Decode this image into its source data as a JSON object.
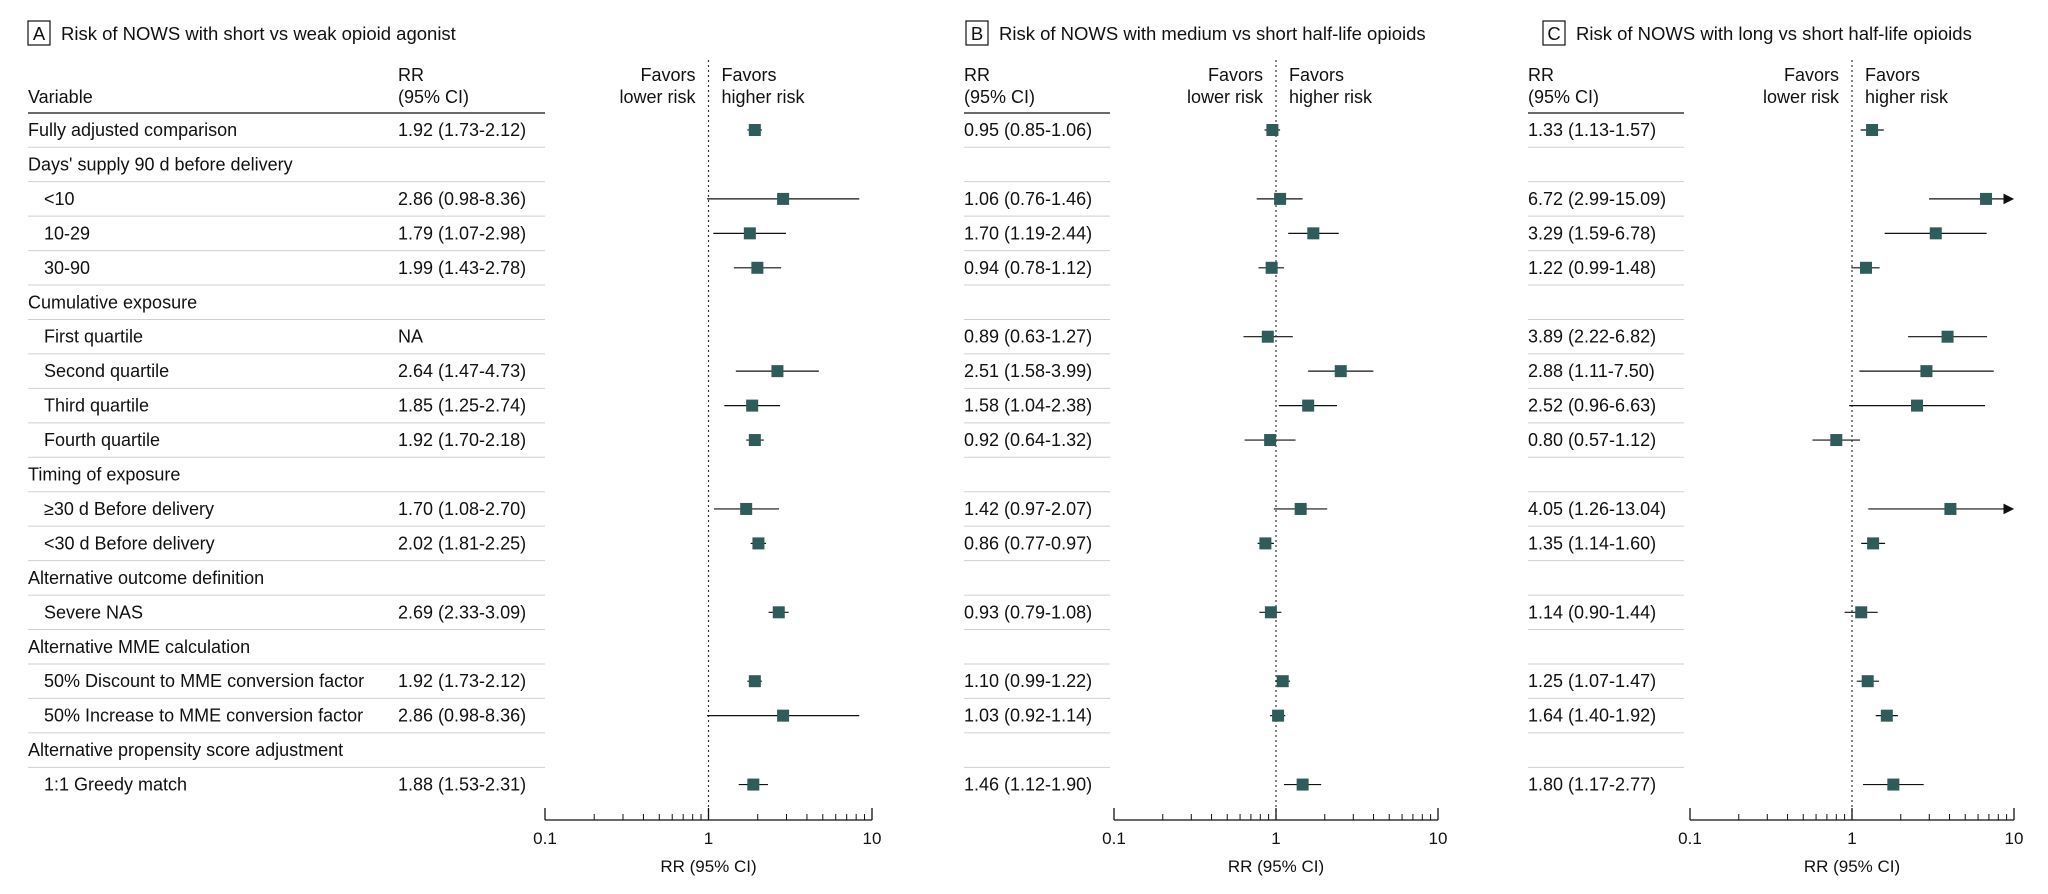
{
  "chart_data": {
    "type": "forest",
    "x_scale": "log",
    "xlim": [
      0.1,
      10
    ],
    "x_ticks": [
      0.1,
      1,
      10
    ],
    "x_tick_labels": [
      "0.1",
      "1",
      "10"
    ],
    "xlabel": "RR (95% CI)",
    "favors_lower": [
      "Favors",
      "lower risk"
    ],
    "favors_higher": [
      "Favors",
      "higher risk"
    ],
    "rr_header": [
      "RR",
      "(95% CI)"
    ],
    "variable_header": "Variable",
    "marker_color": "#2f5b5b",
    "rows": [
      {
        "label": "Fully adjusted comparison",
        "type": "item",
        "indent": false
      },
      {
        "label": "Days' supply 90 d before delivery",
        "type": "group",
        "indent": false
      },
      {
        "label": "<10",
        "type": "item",
        "indent": true
      },
      {
        "label": "10-29",
        "type": "item",
        "indent": true
      },
      {
        "label": "30-90",
        "type": "item",
        "indent": true
      },
      {
        "label": "Cumulative exposure",
        "type": "group",
        "indent": false
      },
      {
        "label": "First quartile",
        "type": "item",
        "indent": true
      },
      {
        "label": "Second quartile",
        "type": "item",
        "indent": true
      },
      {
        "label": "Third quartile",
        "type": "item",
        "indent": true
      },
      {
        "label": "Fourth quartile",
        "type": "item",
        "indent": true
      },
      {
        "label": "Timing of exposure",
        "type": "group",
        "indent": false
      },
      {
        "label": "≥30 d Before delivery",
        "type": "item",
        "indent": true
      },
      {
        "label": "<30 d Before delivery",
        "type": "item",
        "indent": true
      },
      {
        "label": "Alternative outcome definition",
        "type": "group",
        "indent": false
      },
      {
        "label": "Severe NAS",
        "type": "item",
        "indent": true
      },
      {
        "label": "Alternative MME calculation",
        "type": "group",
        "indent": false
      },
      {
        "label": "50% Discount to MME conversion factor",
        "type": "item",
        "indent": true
      },
      {
        "label": "50% Increase to MME conversion factor",
        "type": "item",
        "indent": true
      },
      {
        "label": "Alternative propensity score adjustment",
        "type": "group",
        "indent": false
      },
      {
        "label": "1:1 Greedy match",
        "type": "item",
        "indent": true
      }
    ],
    "panels": [
      {
        "letter": "A",
        "title": "Risk of NOWS with short vs weak opioid agonist",
        "estimates": [
          {
            "text": "1.92 (1.73-2.12)",
            "rr": 1.92,
            "lo": 1.73,
            "hi": 2.12
          },
          null,
          {
            "text": "2.86 (0.98-8.36)",
            "rr": 2.86,
            "lo": 0.98,
            "hi": 8.36
          },
          {
            "text": "1.79 (1.07-2.98)",
            "rr": 1.79,
            "lo": 1.07,
            "hi": 2.98
          },
          {
            "text": "1.99 (1.43-2.78)",
            "rr": 1.99,
            "lo": 1.43,
            "hi": 2.78
          },
          null,
          {
            "text": "NA",
            "rr": null,
            "lo": null,
            "hi": null
          },
          {
            "text": "2.64 (1.47-4.73)",
            "rr": 2.64,
            "lo": 1.47,
            "hi": 4.73
          },
          {
            "text": "1.85 (1.25-2.74)",
            "rr": 1.85,
            "lo": 1.25,
            "hi": 2.74
          },
          {
            "text": "1.92 (1.70-2.18)",
            "rr": 1.92,
            "lo": 1.7,
            "hi": 2.18
          },
          null,
          {
            "text": "1.70 (1.08-2.70)",
            "rr": 1.7,
            "lo": 1.08,
            "hi": 2.7
          },
          {
            "text": "2.02 (1.81-2.25)",
            "rr": 2.02,
            "lo": 1.81,
            "hi": 2.25
          },
          null,
          {
            "text": "2.69 (2.33-3.09)",
            "rr": 2.69,
            "lo": 2.33,
            "hi": 3.09
          },
          null,
          {
            "text": "1.92 (1.73-2.12)",
            "rr": 1.92,
            "lo": 1.73,
            "hi": 2.12
          },
          {
            "text": "2.86 (0.98-8.36)",
            "rr": 2.86,
            "lo": 0.98,
            "hi": 8.36
          },
          null,
          {
            "text": "1.88 (1.53-2.31)",
            "rr": 1.88,
            "lo": 1.53,
            "hi": 2.31
          }
        ]
      },
      {
        "letter": "B",
        "title": "Risk of NOWS with medium vs short half-life opioids",
        "estimates": [
          {
            "text": "0.95 (0.85-1.06)",
            "rr": 0.95,
            "lo": 0.85,
            "hi": 1.06
          },
          null,
          {
            "text": "1.06 (0.76-1.46)",
            "rr": 1.06,
            "lo": 0.76,
            "hi": 1.46
          },
          {
            "text": "1.70 (1.19-2.44)",
            "rr": 1.7,
            "lo": 1.19,
            "hi": 2.44
          },
          {
            "text": "0.94 (0.78-1.12)",
            "rr": 0.94,
            "lo": 0.78,
            "hi": 1.12
          },
          null,
          {
            "text": "0.89 (0.63-1.27)",
            "rr": 0.89,
            "lo": 0.63,
            "hi": 1.27
          },
          {
            "text": "2.51 (1.58-3.99)",
            "rr": 2.51,
            "lo": 1.58,
            "hi": 3.99
          },
          {
            "text": "1.58 (1.04-2.38)",
            "rr": 1.58,
            "lo": 1.04,
            "hi": 2.38
          },
          {
            "text": "0.92 (0.64-1.32)",
            "rr": 0.92,
            "lo": 0.64,
            "hi": 1.32
          },
          null,
          {
            "text": "1.42 (0.97-2.07)",
            "rr": 1.42,
            "lo": 0.97,
            "hi": 2.07
          },
          {
            "text": "0.86 (0.77-0.97)",
            "rr": 0.86,
            "lo": 0.77,
            "hi": 0.97
          },
          null,
          {
            "text": "0.93 (0.79-1.08)",
            "rr": 0.93,
            "lo": 0.79,
            "hi": 1.08
          },
          null,
          {
            "text": "1.10 (0.99-1.22)",
            "rr": 1.1,
            "lo": 0.99,
            "hi": 1.22
          },
          {
            "text": "1.03 (0.92-1.14)",
            "rr": 1.03,
            "lo": 0.92,
            "hi": 1.14
          },
          null,
          {
            "text": "1.46 (1.12-1.90)",
            "rr": 1.46,
            "lo": 1.12,
            "hi": 1.9
          }
        ]
      },
      {
        "letter": "C",
        "title": "Risk of NOWS with long vs short half-life opioids",
        "estimates": [
          {
            "text": "1.33 (1.13-1.57)",
            "rr": 1.33,
            "lo": 1.13,
            "hi": 1.57
          },
          null,
          {
            "text": "6.72 (2.99-15.09)",
            "rr": 6.72,
            "lo": 2.99,
            "hi": 15.09
          },
          {
            "text": "3.29 (1.59-6.78)",
            "rr": 3.29,
            "lo": 1.59,
            "hi": 6.78
          },
          {
            "text": "1.22 (0.99-1.48)",
            "rr": 1.22,
            "lo": 0.99,
            "hi": 1.48
          },
          null,
          {
            "text": "3.89 (2.22-6.82)",
            "rr": 3.89,
            "lo": 2.22,
            "hi": 6.82
          },
          {
            "text": "2.88 (1.11-7.50)",
            "rr": 2.88,
            "lo": 1.11,
            "hi": 7.5
          },
          {
            "text": "2.52 (0.96-6.63)",
            "rr": 2.52,
            "lo": 0.96,
            "hi": 6.63
          },
          {
            "text": "0.80 (0.57-1.12)",
            "rr": 0.8,
            "lo": 0.57,
            "hi": 1.12
          },
          null,
          {
            "text": "4.05 (1.26-13.04)",
            "rr": 4.05,
            "lo": 1.26,
            "hi": 13.04
          },
          {
            "text": "1.35 (1.14-1.60)",
            "rr": 1.35,
            "lo": 1.14,
            "hi": 1.6
          },
          null,
          {
            "text": "1.14 (0.90-1.44)",
            "rr": 1.14,
            "lo": 0.9,
            "hi": 1.44
          },
          null,
          {
            "text": "1.25 (1.07-1.47)",
            "rr": 1.25,
            "lo": 1.07,
            "hi": 1.47
          },
          {
            "text": "1.64 (1.40-1.92)",
            "rr": 1.64,
            "lo": 1.4,
            "hi": 1.92
          },
          null,
          {
            "text": "1.80 (1.17-2.77)",
            "rr": 1.8,
            "lo": 1.17,
            "hi": 2.77
          }
        ]
      }
    ]
  }
}
